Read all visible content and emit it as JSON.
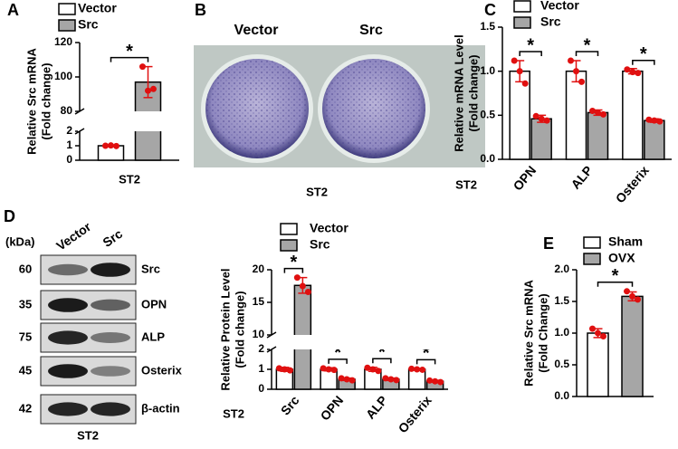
{
  "chart_data": [
    {
      "type": "bar",
      "panel": "A",
      "ylabel": [
        "Relative Src mRNA",
        "(Fold change)"
      ],
      "xlabel": "ST2",
      "categories": [
        null
      ],
      "series": [
        {
          "name": "Vector",
          "color": "#ffffff",
          "values": [
            1
          ],
          "errors": [
            0.05
          ],
          "points": [
            [
              1.0,
              1.02,
              0.98
            ]
          ]
        },
        {
          "name": "Src",
          "color": "#a6a6a6",
          "values": [
            97
          ],
          "errors": [
            9
          ],
          "points": [
            [
              106,
              92,
              93
            ]
          ]
        }
      ],
      "ylim": [
        0,
        120
      ],
      "ybreak": [
        2,
        80
      ],
      "yticks": [
        0,
        1,
        2,
        80,
        100,
        120
      ],
      "significance": [
        "*"
      ]
    },
    {
      "type": "bar",
      "panel": "C",
      "ylabel": [
        "Relative mRNA Level",
        "(Fold change)"
      ],
      "xlabel": "ST2",
      "categories": [
        "OPN",
        "ALP",
        "Osterix"
      ],
      "series": [
        {
          "name": "Vector",
          "color": "#ffffff",
          "values": [
            1,
            1,
            1
          ],
          "errors": [
            0.12,
            0.12,
            0.03
          ],
          "points": [
            [
              1.12,
              1.0,
              0.86
            ],
            [
              1.12,
              1.0,
              0.88
            ],
            [
              1.02,
              0.99,
              0.98
            ]
          ]
        },
        {
          "name": "Src",
          "color": "#a6a6a6",
          "values": [
            0.46,
            0.53,
            0.44
          ],
          "errors": [
            0.04,
            0.03,
            0.02
          ],
          "points": [
            [
              0.49,
              0.46,
              0.44
            ],
            [
              0.55,
              0.53,
              0.51
            ],
            [
              0.45,
              0.44,
              0.43
            ]
          ]
        }
      ],
      "ylim": [
        0,
        1.5
      ],
      "yticks": [
        {
          "value": 0,
          "label": "0.0"
        },
        {
          "value": 0.5,
          "label": "0.5"
        },
        {
          "value": 1,
          "label": "1.0"
        },
        1.5
      ],
      "significance": [
        "*",
        "*",
        "*"
      ]
    },
    {
      "type": "bar",
      "ylabel": [
        "Relative Protein Level",
        "(Fold change)"
      ],
      "xlabel": "ST2",
      "categories": [
        "Src",
        "OPN",
        "ALP",
        "Osterix"
      ],
      "series": [
        {
          "name": "Vector",
          "color": "#ffffff",
          "values": [
            1,
            1,
            1,
            1
          ],
          "errors": [
            0.1,
            0.08,
            0.1,
            0.05
          ],
          "points": [
            [
              1.05,
              1.0,
              0.95
            ],
            [
              1.05,
              1.0,
              0.97
            ],
            [
              1.08,
              1.0,
              0.92
            ],
            [
              1.03,
              1.0,
              0.98
            ]
          ]
        },
        {
          "name": "Src",
          "color": "#a6a6a6",
          "values": [
            17.6,
            0.5,
            0.5,
            0.4
          ],
          "errors": [
            1.2,
            0.06,
            0.06,
            0.05
          ],
          "points": [
            [
              18.8,
              17.5,
              16.6
            ],
            [
              0.55,
              0.5,
              0.45
            ],
            [
              0.55,
              0.5,
              0.46
            ],
            [
              0.44,
              0.4,
              0.36
            ]
          ]
        }
      ],
      "ylim": [
        0,
        20
      ],
      "ybreak": [
        2,
        10
      ],
      "yticks": [
        0,
        1,
        2,
        10,
        15,
        20
      ],
      "significance": [
        "*",
        "*",
        "*",
        "*"
      ]
    },
    {
      "type": "bar",
      "panel": "E",
      "ylabel": [
        "Relative Src mRNA",
        "(Fold Change)"
      ],
      "categories": [
        null
      ],
      "series": [
        {
          "name": "Sham",
          "color": "#ffffff",
          "values": [
            1.0
          ],
          "errors": [
            0.07
          ],
          "points": [
            [
              1.07,
              1.0,
              0.95
            ]
          ]
        },
        {
          "name": "OVX",
          "color": "#a6a6a6",
          "values": [
            1.58
          ],
          "errors": [
            0.07
          ],
          "points": [
            [
              1.66,
              1.58,
              1.53
            ]
          ]
        }
      ],
      "ylim": [
        0,
        2
      ],
      "yticks": [
        {
          "value": 0,
          "label": "0.0"
        },
        {
          "value": 0.5,
          "label": "0.5"
        },
        {
          "value": 1,
          "label": "1.0"
        },
        1.5,
        {
          "value": 2,
          "label": "2.0"
        }
      ],
      "significance": [
        "*"
      ]
    }
  ],
  "culture": {
    "panel": "B",
    "labels": [
      "Vector",
      "Src"
    ],
    "xlabel": "ST2"
  },
  "blot": {
    "panel": "D",
    "unit": "(kDa)",
    "lanes": [
      "Vector",
      "Src"
    ],
    "xlabel": "ST2",
    "rows": [
      {
        "kda": 60,
        "protein": "Src"
      },
      {
        "kda": 35,
        "protein": "OPN"
      },
      {
        "kda": 75,
        "protein": "ALP"
      },
      {
        "kda": 45,
        "protein": "Osterix"
      },
      {
        "kda": 42,
        "protein": "β-actin"
      }
    ]
  }
}
